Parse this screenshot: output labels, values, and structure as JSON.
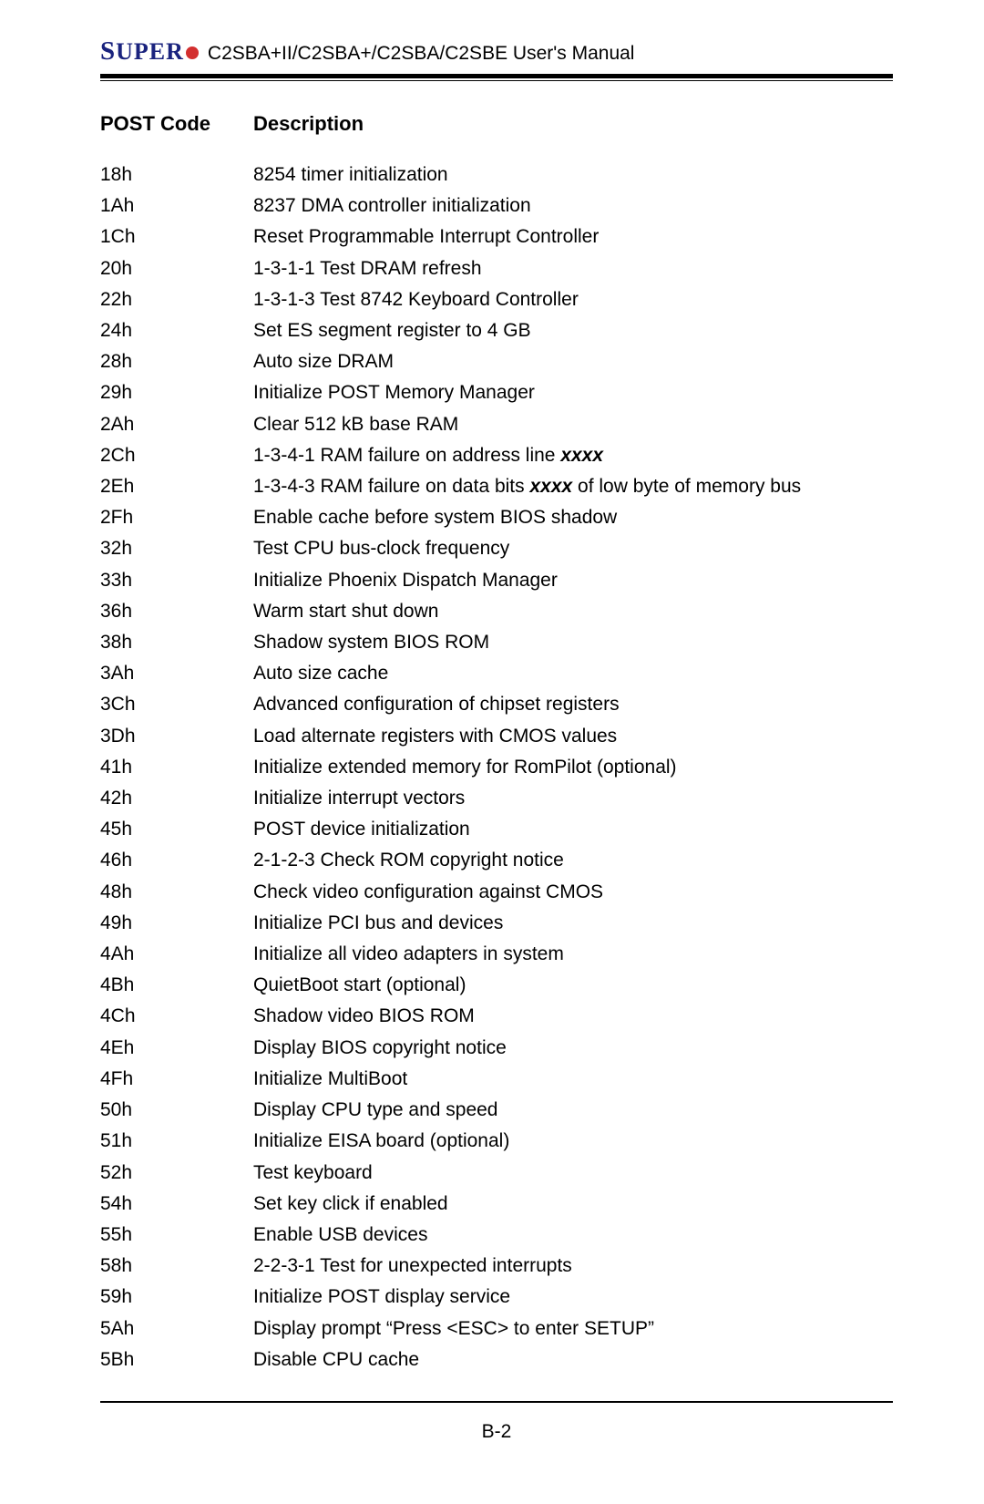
{
  "header": {
    "logo_text": "SUPER",
    "manual_title": "C2SBA+II/C2SBA+/C2SBA/C2SBE User's Manual"
  },
  "table_headers": {
    "code": "POST Code",
    "desc": "Description"
  },
  "rows": [
    {
      "code": "18h",
      "desc": "8254 timer initialization"
    },
    {
      "code": "1Ah",
      "desc": "8237 DMA controller initialization"
    },
    {
      "code": "1Ch",
      "desc": "Reset Programmable Interrupt Controller"
    },
    {
      "code": "20h",
      "desc": "1-3-1-1 Test DRAM refresh"
    },
    {
      "code": "22h",
      "desc": "1-3-1-3 Test 8742 Keyboard Controller"
    },
    {
      "code": "24h",
      "desc": "Set ES segment register to 4 GB"
    },
    {
      "code": "28h",
      "desc": "Auto size DRAM"
    },
    {
      "code": "29h",
      "desc": "Initialize POST Memory Manager"
    },
    {
      "code": "2Ah",
      "desc": "Clear 512 kB base RAM"
    },
    {
      "code": "2Ch",
      "desc_pre": "1-3-4-1 RAM failure on address line ",
      "xxxx": "xxxx",
      "desc_post": ""
    },
    {
      "code": "2Eh",
      "desc_pre": "1-3-4-3 RAM failure on data bits ",
      "xxxx": "xxxx",
      "desc_post": " of low byte of memory bus"
    },
    {
      "code": "2Fh",
      "desc": "Enable cache before system BIOS shadow"
    },
    {
      "code": "32h",
      "desc": "Test CPU bus-clock frequency"
    },
    {
      "code": "33h",
      "desc": "Initialize Phoenix Dispatch Manager"
    },
    {
      "code": "36h",
      "desc": "Warm start shut down"
    },
    {
      "code": "38h",
      "desc": "Shadow system BIOS ROM"
    },
    {
      "code": "3Ah",
      "desc": "Auto size cache"
    },
    {
      "code": "3Ch",
      "desc": "Advanced configuration of chipset registers"
    },
    {
      "code": "3Dh",
      "desc": "Load alternate registers with CMOS values"
    },
    {
      "code": "41h",
      "desc": "Initialize extended memory for RomPilot (optional)"
    },
    {
      "code": "42h",
      "desc": "Initialize interrupt vectors"
    },
    {
      "code": "45h",
      "desc": "POST device initialization"
    },
    {
      "code": "46h",
      "desc": "2-1-2-3 Check ROM copyright notice"
    },
    {
      "code": "48h",
      "desc": "Check video configuration against CMOS"
    },
    {
      "code": "49h",
      "desc": "Initialize PCI bus and devices"
    },
    {
      "code": "4Ah",
      "desc": "Initialize all video adapters in system"
    },
    {
      "code": "4Bh",
      "desc": "QuietBoot start (optional)"
    },
    {
      "code": "4Ch",
      "desc": "Shadow video BIOS ROM"
    },
    {
      "code": "4Eh",
      "desc": "Display BIOS copyright notice"
    },
    {
      "code": "4Fh",
      "desc": "Initialize MultiBoot"
    },
    {
      "code": "50h",
      "desc": "Display CPU type and speed"
    },
    {
      "code": "51h",
      "desc": "Initialize EISA board (optional)"
    },
    {
      "code": "52h",
      "desc": "Test keyboard"
    },
    {
      "code": "54h",
      "desc": "Set key click if enabled"
    },
    {
      "code": "55h",
      "desc": "Enable USB devices"
    },
    {
      "code": "58h",
      "desc": "2-2-3-1 Test for unexpected interrupts"
    },
    {
      "code": "59h",
      "desc": "Initialize POST display service"
    },
    {
      "code": "5Ah",
      "desc": "Display prompt “Press <ESC> to enter SETUP”"
    },
    {
      "code": "5Bh",
      "desc": "Disable CPU cache"
    }
  ],
  "page_number": "B-2",
  "style": {
    "body_font_size": 21,
    "header_font_size": 22,
    "line_height": 34.2,
    "logo_color": "#1a237e",
    "dot_color": "#d32f2f",
    "text_color": "#000000",
    "background": "#ffffff",
    "code_col_width": 168
  }
}
